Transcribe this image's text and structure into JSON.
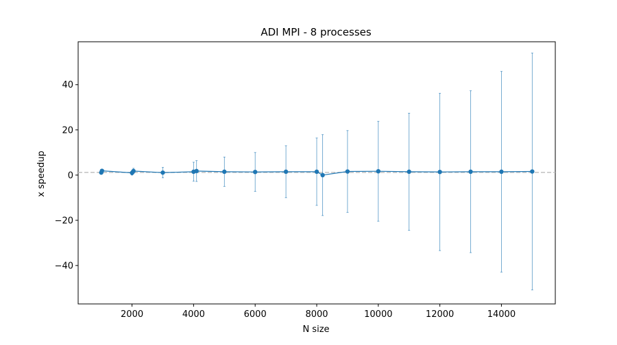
{
  "chart_data": {
    "type": "line",
    "title": "ADI MPI - 8 processes",
    "xlabel": "N size",
    "ylabel": "x speedup",
    "xlim": [
      250,
      15750
    ],
    "ylim": [
      -57,
      59
    ],
    "xticks": [
      2000,
      4000,
      6000,
      8000,
      10000,
      12000,
      14000
    ],
    "yticks": [
      -40,
      -20,
      0,
      20,
      40
    ],
    "reference_line": {
      "y": 1.2,
      "style": "dashed",
      "color": "#c0c0c0"
    },
    "grid": false,
    "legend": "none",
    "series": [
      {
        "color": "#1f77b4",
        "x": [
          1000,
          1024,
          2000,
          2048,
          3000,
          4000,
          4096,
          5000,
          6000,
          7000,
          8000,
          8192,
          9000,
          10000,
          11000,
          12000,
          13000,
          14000,
          15000
        ],
        "y": [
          1.1,
          1.9,
          1.0,
          1.8,
          1.1,
          1.5,
          1.8,
          1.5,
          1.4,
          1.5,
          1.5,
          0.0,
          1.6,
          1.7,
          1.5,
          1.4,
          1.5,
          1.5,
          1.6
        ],
        "err": [
          0.4,
          0.4,
          1.0,
          1.2,
          2.3,
          4.2,
          4.6,
          6.5,
          8.6,
          11.5,
          14.9,
          17.9,
          18.1,
          22.1,
          25.9,
          34.8,
          35.8,
          44.4,
          52.4
        ]
      }
    ]
  }
}
